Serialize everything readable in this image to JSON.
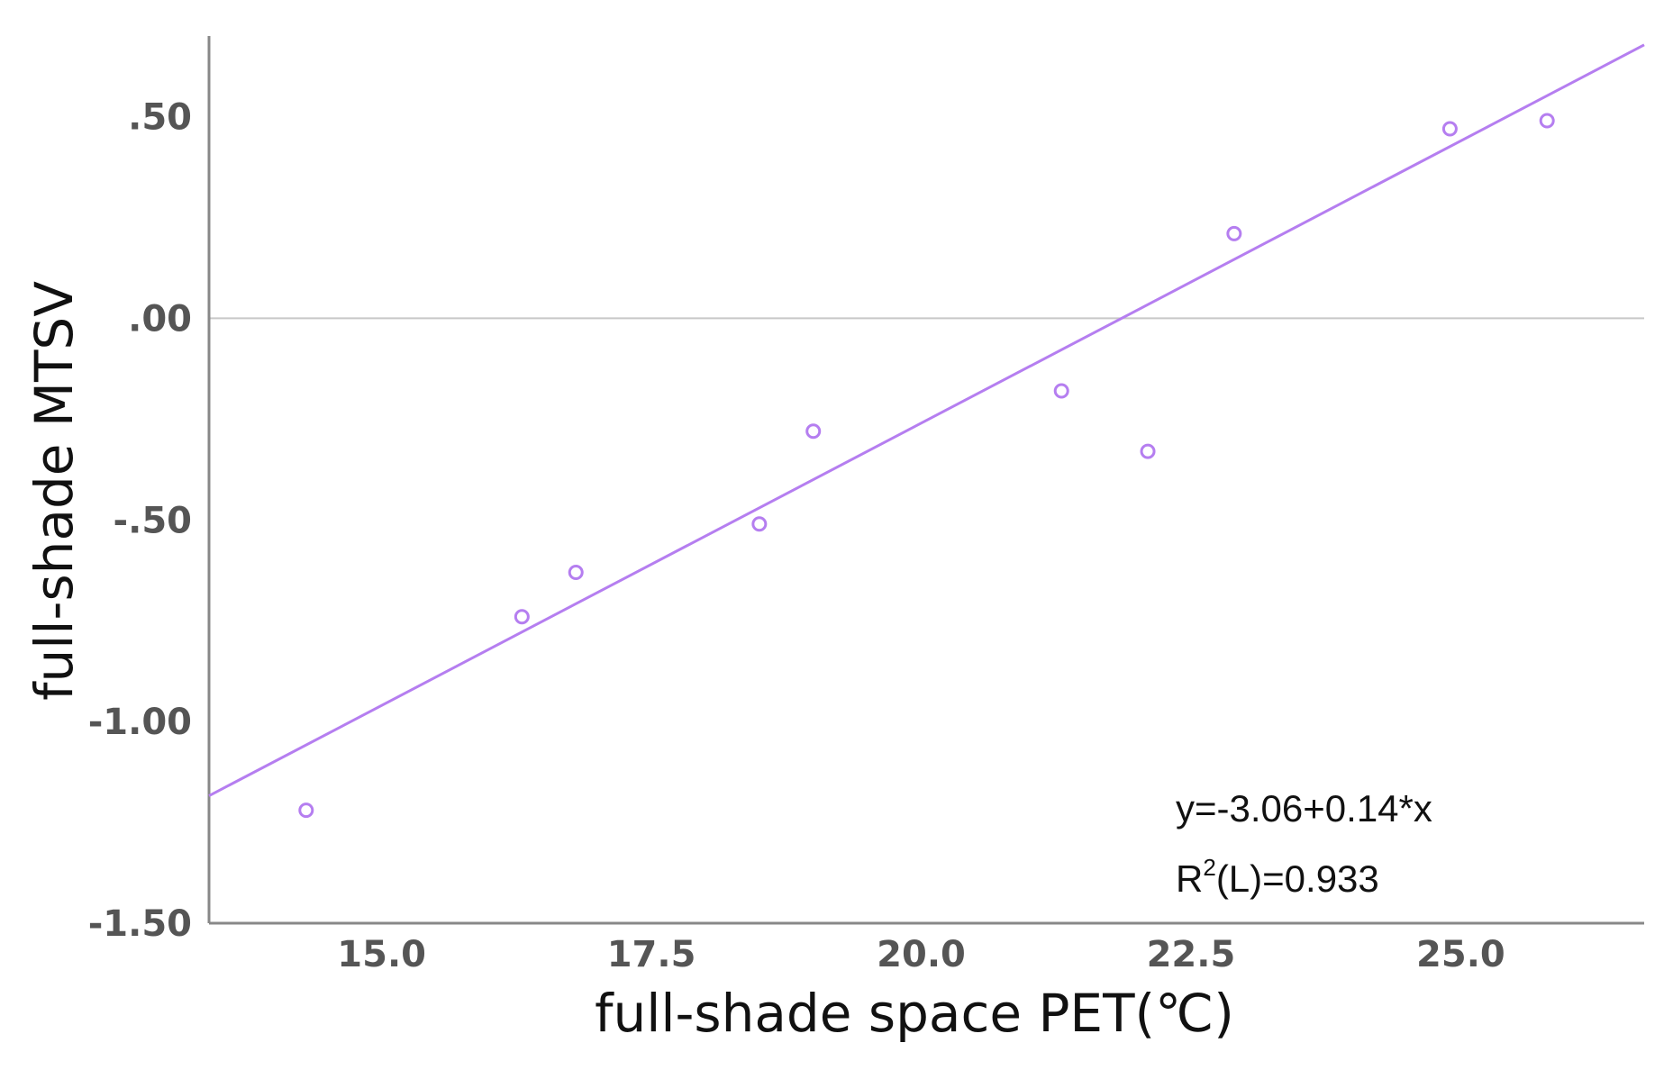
{
  "chart_data": {
    "type": "scatter",
    "xlabel": "full-shade space PET(℃)",
    "ylabel": "full-shade MTSV",
    "xlim": [
      13.4,
      26.7
    ],
    "ylim": [
      -1.5,
      0.7
    ],
    "x_ticks": [
      15.0,
      17.5,
      20.0,
      22.5,
      25.0
    ],
    "x_tick_labels": [
      "15.0",
      "17.5",
      "20.0",
      "22.5",
      "25.0"
    ],
    "y_ticks": [
      0.5,
      0.0,
      -0.5,
      -1.0,
      -1.5
    ],
    "y_tick_labels": [
      ".50",
      ".00",
      "-.50",
      "-1.00",
      "-1.50"
    ],
    "reference_line_y": 0.0,
    "points": [
      {
        "x": 14.3,
        "y": -1.22
      },
      {
        "x": 16.3,
        "y": -0.74
      },
      {
        "x": 16.8,
        "y": -0.63
      },
      {
        "x": 18.5,
        "y": -0.51
      },
      {
        "x": 19.0,
        "y": -0.28
      },
      {
        "x": 21.3,
        "y": -0.18
      },
      {
        "x": 22.1,
        "y": -0.33
      },
      {
        "x": 22.9,
        "y": 0.21
      },
      {
        "x": 24.9,
        "y": 0.47
      },
      {
        "x": 25.8,
        "y": 0.49
      }
    ],
    "fit_line": {
      "intercept": -3.06,
      "slope": 0.14
    },
    "equation_label": "y=-3.06+0.14*x",
    "r2_label": {
      "prefix": "R",
      "superscript": "2",
      "suffix": "(L)=0.933"
    },
    "grid": false,
    "color": "#b57ef0"
  }
}
